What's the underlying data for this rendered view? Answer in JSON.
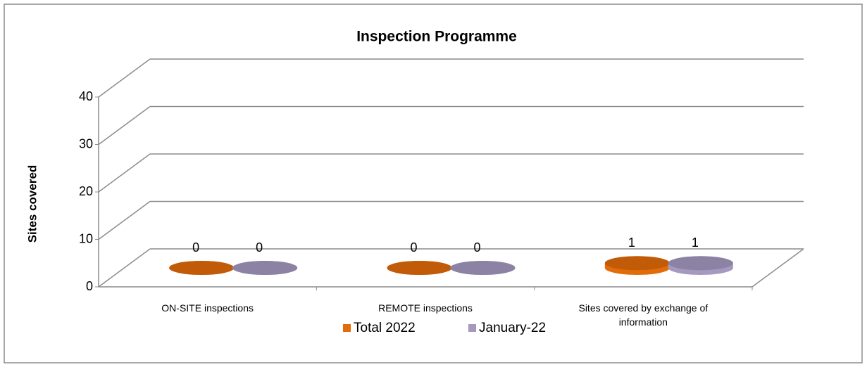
{
  "chart_data": {
    "type": "bar3d",
    "title": "Inspection Programme",
    "y_label": "Sites covered",
    "categories": [
      "ON-SITE inspections",
      "REMOTE inspections",
      "Sites covered by exchange of information"
    ],
    "series": [
      {
        "name": "Total 2022",
        "color": "#e36c0a",
        "values": [
          0,
          0,
          1
        ]
      },
      {
        "name": "January-22",
        "color": "#a599c0",
        "values": [
          0,
          0,
          1
        ]
      }
    ],
    "ylim": [
      0,
      40
    ],
    "yticks": [
      0,
      10,
      20,
      30,
      40
    ],
    "grid": true,
    "legend": "bottom"
  }
}
